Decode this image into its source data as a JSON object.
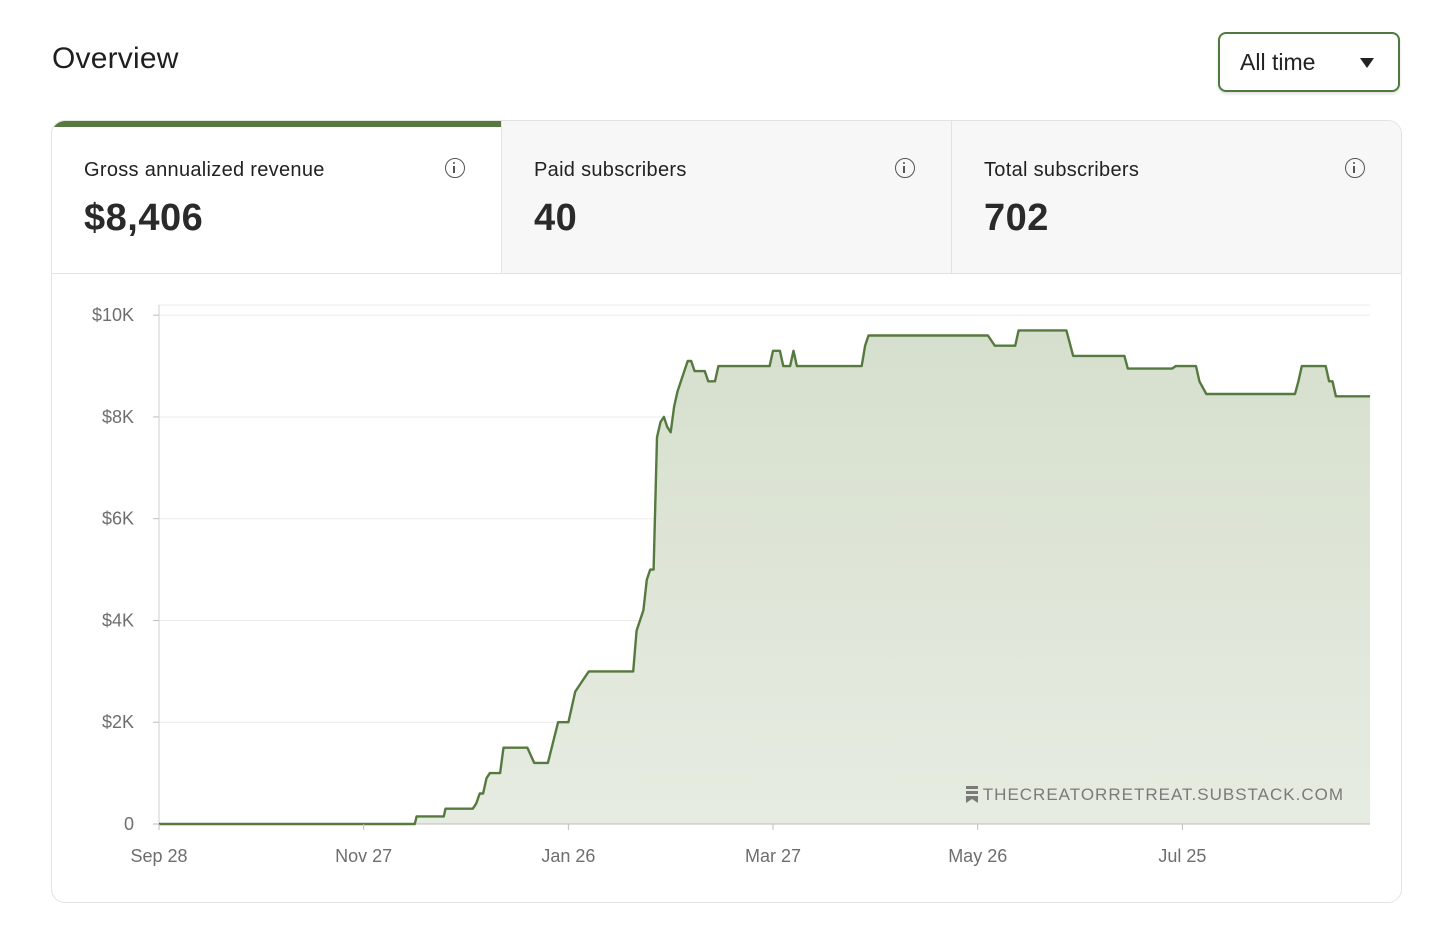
{
  "header": {
    "title": "Overview",
    "range_selected": "All time"
  },
  "stats": [
    {
      "label": "Gross annualized revenue",
      "value": "$8,406",
      "active": true
    },
    {
      "label": "Paid subscribers",
      "value": "40",
      "active": false
    },
    {
      "label": "Total subscribers",
      "value": "702",
      "active": false
    }
  ],
  "watermark": "THECREATORRETREAT.SUBSTACK.COM",
  "colors": {
    "accent": "#56793f",
    "area_fill": "#dfe6d8",
    "grid": "#ebebeb",
    "tick_text": "#6e6e6e"
  },
  "chart_data": {
    "type": "area",
    "title": "",
    "xlabel": "",
    "ylabel": "",
    "x_start": "Sep 28",
    "x_ticks": [
      {
        "label": "Sep 28",
        "day": 0
      },
      {
        "label": "Nov 27",
        "day": 60
      },
      {
        "label": "Jan 26",
        "day": 120
      },
      {
        "label": "Mar 27",
        "day": 180
      },
      {
        "label": "May 26",
        "day": 240
      },
      {
        "label": "Jul 25",
        "day": 300
      }
    ],
    "y_ticks": [
      {
        "label": "0",
        "value": 0
      },
      {
        "label": "$2K",
        "value": 2000
      },
      {
        "label": "$4K",
        "value": 4000
      },
      {
        "label": "$6K",
        "value": 6000
      },
      {
        "label": "$8K",
        "value": 8000
      },
      {
        "label": "$10K",
        "value": 10000
      }
    ],
    "xlim": [
      0,
      355
    ],
    "ylim": [
      0,
      10200
    ],
    "grid": true,
    "legend": "none",
    "series": [
      {
        "points": [
          [
            0,
            0
          ],
          [
            75,
            0
          ],
          [
            75.5,
            150
          ],
          [
            83.5,
            150
          ],
          [
            84,
            300
          ],
          [
            92,
            300
          ],
          [
            93,
            400
          ],
          [
            94,
            600
          ],
          [
            95,
            600
          ],
          [
            96,
            900
          ],
          [
            97,
            1000
          ],
          [
            100,
            1000
          ],
          [
            101,
            1500
          ],
          [
            108,
            1500
          ],
          [
            110,
            1200
          ],
          [
            114,
            1200
          ],
          [
            117,
            2000
          ],
          [
            120,
            2000
          ],
          [
            122,
            2600
          ],
          [
            124,
            2800
          ],
          [
            125,
            2900
          ],
          [
            126,
            3000
          ],
          [
            139,
            3000
          ],
          [
            140,
            3800
          ],
          [
            142,
            4200
          ],
          [
            143,
            4800
          ],
          [
            144,
            5000
          ],
          [
            145,
            5000
          ],
          [
            146,
            7600
          ],
          [
            147,
            7900
          ],
          [
            148,
            8000
          ],
          [
            149,
            7800
          ],
          [
            150,
            7700
          ],
          [
            151,
            8200
          ],
          [
            152,
            8500
          ],
          [
            153,
            8700
          ],
          [
            154,
            8900
          ],
          [
            155,
            9100
          ],
          [
            156,
            9100
          ],
          [
            157,
            8900
          ],
          [
            160,
            8900
          ],
          [
            161,
            8700
          ],
          [
            163,
            8700
          ],
          [
            164,
            9000
          ],
          [
            179,
            9000
          ],
          [
            180,
            9300
          ],
          [
            182,
            9300
          ],
          [
            183,
            9000
          ],
          [
            185,
            9000
          ],
          [
            186,
            9300
          ],
          [
            187,
            9000
          ],
          [
            206,
            9000
          ],
          [
            207,
            9400
          ],
          [
            208,
            9600
          ],
          [
            243,
            9600
          ],
          [
            245,
            9400
          ],
          [
            251,
            9400
          ],
          [
            252,
            9700
          ],
          [
            266,
            9700
          ],
          [
            268,
            9200
          ],
          [
            283,
            9200
          ],
          [
            284,
            8950
          ],
          [
            297,
            8950
          ],
          [
            298,
            9000
          ],
          [
            304,
            9000
          ],
          [
            305,
            8700
          ],
          [
            307,
            8450
          ],
          [
            333,
            8450
          ],
          [
            334,
            8700
          ],
          [
            335,
            9000
          ],
          [
            342,
            9000
          ],
          [
            343,
            8700
          ],
          [
            344,
            8700
          ],
          [
            345,
            8406
          ],
          [
            355,
            8406
          ]
        ]
      }
    ]
  }
}
